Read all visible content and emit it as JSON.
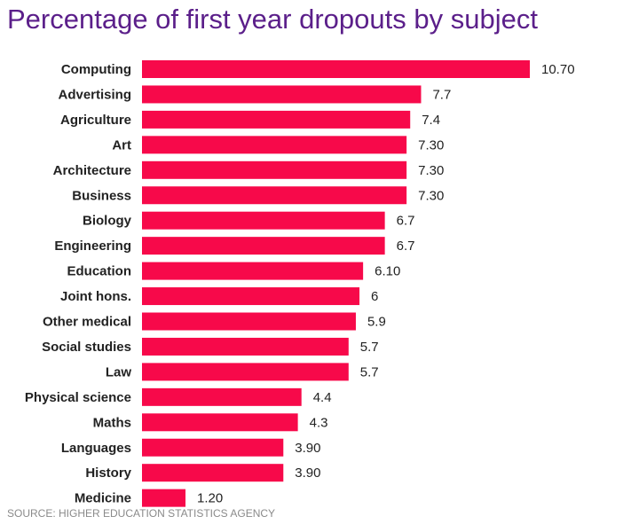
{
  "colors": {
    "bar": "#f7094a",
    "title": "#5b1f8a"
  },
  "chart_data": {
    "type": "bar",
    "orientation": "horizontal",
    "title": "Percentage of first year dropouts by subject",
    "categories": [
      "Computing",
      "Advertising",
      "Agriculture",
      "Art",
      "Architecture",
      "Business",
      "Biology",
      "Engineering",
      "Education",
      "Joint hons.",
      "Other medical",
      "Social studies",
      "Law",
      "Physical science",
      "Maths",
      "Languages",
      "History",
      "Medicine"
    ],
    "values": [
      10.7,
      7.7,
      7.4,
      7.3,
      7.3,
      7.3,
      6.7,
      6.7,
      6.1,
      6,
      5.9,
      5.7,
      5.7,
      4.4,
      4.3,
      3.9,
      3.9,
      1.2
    ],
    "value_labels": [
      "10.70",
      "7.7",
      "7.4",
      "7.30",
      "7.30",
      "7.30",
      "6.7",
      "6.7",
      "6.10",
      "6",
      "5.9",
      "5.7",
      "5.7",
      "4.4",
      "4.3",
      "3.90",
      "3.90",
      "1.20"
    ],
    "xlim": [
      0,
      10.7
    ],
    "grid": false,
    "legend": "none"
  },
  "source": "SOURCE: HIGHER EDUCATION STATISTICS AGENCY"
}
